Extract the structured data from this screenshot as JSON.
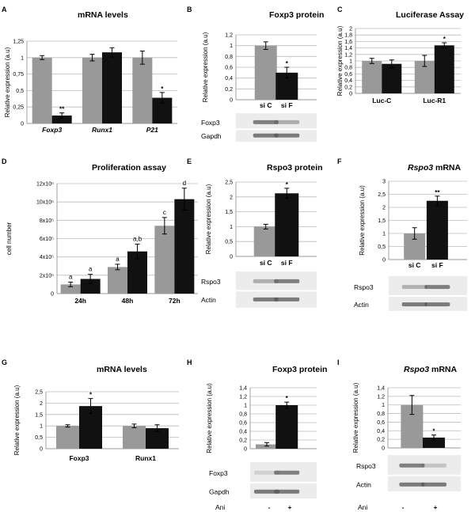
{
  "colors": {
    "control": "#999999",
    "treated": "#111111",
    "grid": "#bbbbbb",
    "blot_bg": "#ececec",
    "band": "#555555"
  },
  "chart_data": [
    {
      "id": "A",
      "letter": "A",
      "type": "bar",
      "title": "mRNA levels",
      "title_italic_part": "",
      "ylabel": "Relative expression (a.u)",
      "xlabel": "",
      "ylim": [
        0,
        1.25
      ],
      "yticks": [
        "0",
        "0,25",
        "0,5",
        "0,75",
        "1",
        "1,25"
      ],
      "tick_step": 0.25,
      "categories": [
        "Foxp3",
        "Runx1",
        "P21"
      ],
      "categories_italic": true,
      "series": [
        {
          "name": "control",
          "values": [
            1.0,
            1.0,
            1.0
          ],
          "errors": [
            0.03,
            0.05,
            0.1
          ]
        },
        {
          "name": "treated",
          "values": [
            0.12,
            1.08,
            0.39
          ],
          "errors": [
            0.04,
            0.07,
            0.08
          ]
        }
      ],
      "annotations": [
        {
          "category": 0,
          "series": 1,
          "text": "**"
        },
        {
          "category": 2,
          "series": 1,
          "text": "*"
        }
      ],
      "blots": [],
      "lane_labels": []
    },
    {
      "id": "B",
      "letter": "B",
      "type": "bar",
      "title": "Foxp3 protein",
      "title_italic_part": "",
      "ylabel": "Relative expression (a.u)",
      "xlabel": "",
      "ylim": [
        0,
        1.2
      ],
      "yticks": [
        "0",
        "0,2",
        "0,4",
        "0,6",
        "0,8",
        "1",
        "1,2"
      ],
      "tick_step": 0.2,
      "categories": [
        "si C",
        "si F"
      ],
      "categories_italic": false,
      "series": [
        {
          "name": "bars",
          "values": [
            1.0,
            0.5
          ],
          "errors": [
            0.07,
            0.1
          ]
        }
      ],
      "annotations": [
        {
          "category": 1,
          "series": 0,
          "text": "*"
        }
      ],
      "blots": [
        "Foxp3",
        "Gapdh"
      ],
      "lane_labels": []
    },
    {
      "id": "C",
      "letter": "C",
      "type": "bar",
      "title": "Luciferase Assay",
      "title_italic_part": "",
      "ylabel": "Relative expression (a.u)",
      "xlabel": "",
      "ylim": [
        0,
        2
      ],
      "yticks": [
        "0",
        "0,2",
        "0,4",
        "0,6",
        "0,8",
        "1",
        "1,2",
        "1,4",
        "1,6",
        "1,8",
        "2"
      ],
      "tick_step": 0.2,
      "categories": [
        "Luc-C",
        "Luc-R1"
      ],
      "categories_italic": false,
      "series": [
        {
          "name": "control",
          "values": [
            1.0,
            1.0
          ],
          "errors": [
            0.08,
            0.17
          ]
        },
        {
          "name": "treated",
          "values": [
            0.91,
            1.48
          ],
          "errors": [
            0.12,
            0.08
          ]
        }
      ],
      "annotations": [
        {
          "category": 1,
          "series": 1,
          "text": "*"
        }
      ],
      "blots": [],
      "lane_labels": []
    },
    {
      "id": "D",
      "letter": "D",
      "type": "bar",
      "title": "Proliferation assay",
      "title_italic_part": "",
      "ylabel": "cell number",
      "xlabel": "",
      "ylim": [
        0,
        12
      ],
      "yticks": [
        "0",
        "2x10⁵",
        "4x10⁵",
        "6x10⁵",
        "8x10⁵",
        "10x10⁵",
        "12x10⁵"
      ],
      "tick_step": 2,
      "categories": [
        "24h",
        "48h",
        "72h"
      ],
      "categories_italic": false,
      "series": [
        {
          "name": "control",
          "values": [
            1.0,
            2.9,
            7.4
          ],
          "errors": [
            0.25,
            0.3,
            0.9
          ]
        },
        {
          "name": "treated",
          "values": [
            1.6,
            4.6,
            10.3
          ],
          "errors": [
            0.5,
            0.8,
            1.2
          ]
        }
      ],
      "annotations": [
        {
          "category": 0,
          "series": 0,
          "text": "a"
        },
        {
          "category": 0,
          "series": 1,
          "text": "a"
        },
        {
          "category": 1,
          "series": 0,
          "text": "a"
        },
        {
          "category": 1,
          "series": 1,
          "text": "a,b"
        },
        {
          "category": 2,
          "series": 0,
          "text": "c"
        },
        {
          "category": 2,
          "series": 1,
          "text": "d"
        }
      ],
      "blots": [],
      "lane_labels": []
    },
    {
      "id": "E",
      "letter": "E",
      "type": "bar",
      "title": "Rspo3 protein",
      "title_italic_part": "",
      "ylabel": "Relative expression (a.u)",
      "xlabel": "",
      "ylim": [
        0,
        2.5
      ],
      "yticks": [
        "0",
        "0,5",
        "1",
        "1,5",
        "2",
        "2,5"
      ],
      "tick_step": 0.5,
      "categories": [
        "si C",
        "si F"
      ],
      "categories_italic": false,
      "series": [
        {
          "name": "bars",
          "values": [
            1.0,
            2.12
          ],
          "errors": [
            0.08,
            0.17
          ]
        }
      ],
      "annotations": [
        {
          "category": 1,
          "series": 0,
          "text": "*"
        }
      ],
      "blots": [
        "Rspo3",
        "Actin"
      ],
      "lane_labels": []
    },
    {
      "id": "F",
      "letter": "F",
      "type": "bar",
      "title": "mRNA",
      "title_italic_part": "Rspo3",
      "ylabel": "Relative expression (a.u)",
      "xlabel": "",
      "ylim": [
        0,
        3
      ],
      "yticks": [
        "0",
        "0,5",
        "1",
        "1,5",
        "2",
        "2,5",
        "3"
      ],
      "tick_step": 0.5,
      "categories": [
        "si C",
        "si F"
      ],
      "categories_italic": false,
      "series": [
        {
          "name": "bars",
          "values": [
            1.0,
            2.25
          ],
          "errors": [
            0.22,
            0.18
          ]
        }
      ],
      "annotations": [
        {
          "category": 1,
          "series": 0,
          "text": "**"
        }
      ],
      "blots": [
        "Rspo3",
        "Actin"
      ],
      "lane_labels": []
    },
    {
      "id": "G",
      "letter": "G",
      "type": "bar",
      "title": "mRNA levels",
      "title_italic_part": "",
      "ylabel": "Relative expression (a.u)",
      "xlabel": "",
      "ylim": [
        0,
        2.5
      ],
      "yticks": [
        "0",
        "0,5",
        "1",
        "1,5",
        "2",
        "2,5"
      ],
      "tick_step": 0.5,
      "categories": [
        "Foxp3",
        "Runx1"
      ],
      "categories_italic": false,
      "series": [
        {
          "name": "control",
          "values": [
            1.0,
            1.0
          ],
          "errors": [
            0.05,
            0.08
          ]
        },
        {
          "name": "treated",
          "values": [
            1.87,
            0.9
          ],
          "errors": [
            0.33,
            0.15
          ]
        }
      ],
      "annotations": [
        {
          "category": 0,
          "series": 1,
          "text": "*"
        }
      ],
      "blots": [],
      "lane_labels": []
    },
    {
      "id": "H",
      "letter": "H",
      "type": "bar",
      "title": "Foxp3 protein",
      "title_italic_part": "",
      "ylabel": "Relative expression (a.u)",
      "xlabel": "Ani",
      "ylim": [
        0,
        1.4
      ],
      "yticks": [
        "0",
        "0,2",
        "0,4",
        "0,6",
        "0,8",
        "1",
        "1,2",
        "1,4"
      ],
      "tick_step": 0.2,
      "categories": [
        "",
        ""
      ],
      "categories_italic": false,
      "series": [
        {
          "name": "bars",
          "values": [
            0.1,
            1.0
          ],
          "errors": [
            0.04,
            0.07
          ]
        }
      ],
      "annotations": [
        {
          "category": 1,
          "series": 0,
          "text": "*"
        }
      ],
      "blots": [
        "Foxp3",
        "Gapdh"
      ],
      "lane_labels": [
        "-",
        "+"
      ]
    },
    {
      "id": "I",
      "letter": "I",
      "type": "bar",
      "title": "mRNA",
      "title_italic_part": "Rspo3",
      "ylabel": "Relative expression (a.u)",
      "xlabel": "Ani",
      "ylim": [
        0,
        1.4
      ],
      "yticks": [
        "0",
        "0,2",
        "0,4",
        "0,6",
        "0,8",
        "1",
        "1,2",
        "1,4"
      ],
      "tick_step": 0.2,
      "categories": [
        "",
        ""
      ],
      "categories_italic": false,
      "series": [
        {
          "name": "bars",
          "values": [
            1.0,
            0.24
          ],
          "errors": [
            0.22,
            0.06
          ]
        }
      ],
      "annotations": [
        {
          "category": 1,
          "series": 0,
          "text": "*"
        }
      ],
      "blots": [
        "Rspo3",
        "Actin"
      ],
      "lane_labels": [
        "-",
        "+"
      ]
    }
  ]
}
